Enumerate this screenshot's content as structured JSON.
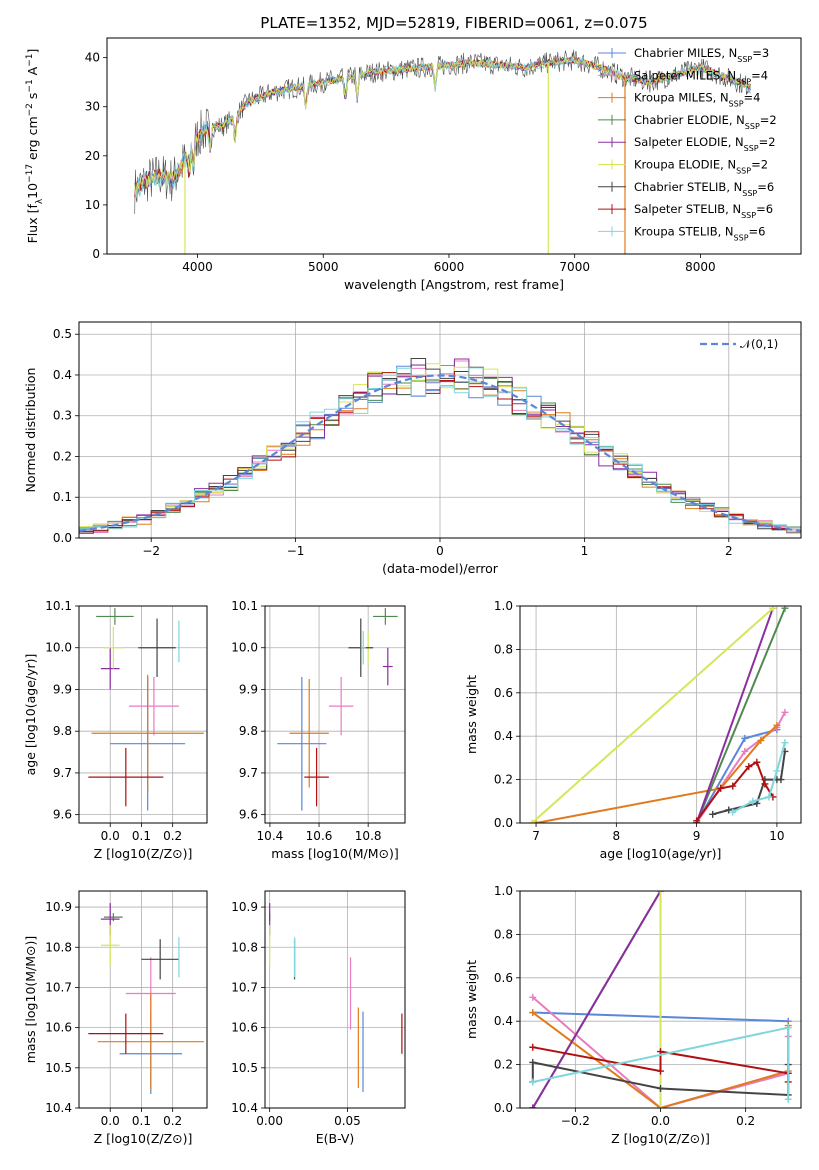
{
  "chart_data": [
    {
      "id": "spectrum",
      "type": "line",
      "title": "PLATE=1352, MJD=52819, FIBERID=0061, z=0.075",
      "xlabel": "wavelength [Angstrom, rest frame]",
      "ylabel": "Flux [f_λ 10^-17 erg cm^-2 s^-1 A^-1]",
      "xlim": [
        3280,
        8800
      ],
      "ylim": [
        0,
        44
      ],
      "xticks": [
        4000,
        5000,
        6000,
        7000,
        8000
      ],
      "yticks": [
        0,
        10,
        20,
        30,
        40
      ],
      "grid": false,
      "legend_position": "top-right",
      "continuum": {
        "x": [
          3500,
          3600,
          3700,
          3800,
          3900,
          4000,
          4100,
          4200,
          4300,
          4400,
          4600,
          4800,
          5000,
          5200,
          5400,
          5600,
          5800,
          6000,
          6200,
          6400,
          6600,
          6800,
          7000,
          7200,
          7400,
          7600,
          7800,
          8000,
          8200,
          8400
        ],
        "y": [
          13,
          15,
          16,
          15,
          19,
          24,
          26,
          26,
          28,
          31,
          33,
          34,
          35,
          36,
          37,
          37.5,
          38,
          38.5,
          39,
          38.5,
          38,
          39,
          39.5,
          38,
          36,
          35,
          36.5,
          38,
          36,
          34
        ]
      },
      "series": [
        {
          "name": "Chabrier MILES, N_SSP=3",
          "color": "#5b86d9"
        },
        {
          "name": "Salpeter MILES, N_SSP=4",
          "color": "#e87cc0"
        },
        {
          "name": "Kroupa MILES, N_SSP=4",
          "color": "#e07a1c"
        },
        {
          "name": "Chabrier ELODIE, N_SSP=2",
          "color": "#4e8a4e"
        },
        {
          "name": "Salpeter ELODIE, N_SSP=2",
          "color": "#8b2ea0"
        },
        {
          "name": "Kroupa ELODIE, N_SSP=2",
          "color": "#d6e65a"
        },
        {
          "name": "Chabrier STELIB, N_SSP=6",
          "color": "#444444"
        },
        {
          "name": "Salpeter STELIB, N_SSP=6",
          "color": "#b01010"
        },
        {
          "name": "Kroupa STELIB, N_SSP=6",
          "color": "#7fd6dc"
        }
      ]
    },
    {
      "id": "residuals",
      "type": "histogram",
      "xlabel": "(data-model)/error",
      "ylabel": "Normed distribution",
      "xlim": [
        -2.5,
        2.5
      ],
      "ylim": [
        0,
        0.53
      ],
      "xticks": [
        -2,
        -1,
        0,
        1,
        2
      ],
      "yticks": [
        0.0,
        0.1,
        0.2,
        0.3,
        0.4,
        0.5
      ],
      "bin_width": 0.1,
      "grid": true,
      "legend": "𝒩(0,1)",
      "legend_position": "top-right",
      "normal_curve": {
        "mean": 0,
        "sigma": 1,
        "color": "#5b86d9"
      }
    },
    {
      "id": "age_vs_Z",
      "type": "scatter",
      "xlabel": "Z [log10(Z/Z⊙)]",
      "ylabel": "age [log10(age/yr)]",
      "xlim": [
        -0.1,
        0.31
      ],
      "ylim": [
        9.58,
        10.1
      ],
      "xticks": [
        0.0,
        0.1,
        0.2
      ],
      "yticks": [
        9.6,
        9.7,
        9.8,
        9.9,
        10.0,
        10.1
      ],
      "grid": true,
      "points": [
        {
          "x": 0.12,
          "y": 9.77,
          "xerr": 0.12,
          "yerr": 0.16,
          "color": "#5b86d9"
        },
        {
          "x": 0.14,
          "y": 9.86,
          "xerr": 0.08,
          "yerr": 0.07,
          "color": "#e87cc0"
        },
        {
          "x": 0.12,
          "y": 9.795,
          "xerr": 0.18,
          "yerr": 0.14,
          "color": "#e07a1c"
        },
        {
          "x": 0.015,
          "y": 10.075,
          "xerr": 0.06,
          "yerr": 0.02,
          "color": "#4e8a4e"
        },
        {
          "x": 0.0,
          "y": 9.95,
          "xerr": 0.03,
          "yerr": 0.05,
          "color": "#8b2ea0"
        },
        {
          "x": 0.01,
          "y": 10.0,
          "xerr": 0.03,
          "yerr": 0.05,
          "color": "#d6e65a"
        },
        {
          "x": 0.15,
          "y": 10.0,
          "xerr": 0.06,
          "yerr": 0.07,
          "color": "#444444"
        },
        {
          "x": 0.05,
          "y": 9.69,
          "xerr": 0.12,
          "yerr": 0.07,
          "color": "#b01010"
        },
        {
          "x": 0.22,
          "y": 10.015,
          "xerr": 0.0,
          "yerr": 0.05,
          "color": "#7fd6dc"
        }
      ]
    },
    {
      "id": "age_vs_mass",
      "type": "scatter",
      "xlabel": "mass [log10(M/M⊙)]",
      "ylabel": "",
      "xlim": [
        10.38,
        10.95
      ],
      "ylim": [
        9.58,
        10.1
      ],
      "xticks": [
        10.4,
        10.6,
        10.8
      ],
      "yticks": [
        9.6,
        9.7,
        9.8,
        9.9,
        10.0,
        10.1
      ],
      "grid": true,
      "points": [
        {
          "x": 10.53,
          "y": 9.77,
          "xerr": 0.1,
          "yerr": 0.16,
          "color": "#5b86d9"
        },
        {
          "x": 10.69,
          "y": 9.86,
          "xerr": 0.05,
          "yerr": 0.07,
          "color": "#e87cc0"
        },
        {
          "x": 10.56,
          "y": 9.795,
          "xerr": 0.08,
          "yerr": 0.13,
          "color": "#e07a1c"
        },
        {
          "x": 10.87,
          "y": 10.075,
          "xerr": 0.05,
          "yerr": 0.02,
          "color": "#4e8a4e"
        },
        {
          "x": 10.88,
          "y": 9.955,
          "xerr": 0.02,
          "yerr": 0.045,
          "color": "#8b2ea0"
        },
        {
          "x": 10.8,
          "y": 10.0,
          "xerr": 0.02,
          "yerr": 0.04,
          "color": "#d6e65a"
        },
        {
          "x": 10.77,
          "y": 10.0,
          "xerr": 0.05,
          "yerr": 0.07,
          "color": "#444444"
        },
        {
          "x": 10.59,
          "y": 9.69,
          "xerr": 0.05,
          "yerr": 0.07,
          "color": "#b01010"
        },
        {
          "x": 10.78,
          "y": 10.0,
          "xerr": 0.01,
          "yerr": 0.04,
          "color": "#7fd6dc"
        }
      ]
    },
    {
      "id": "weight_vs_age",
      "type": "line",
      "xlabel": "age [log10(age/yr)]",
      "ylabel": "mass weight",
      "xlim": [
        6.8,
        10.3
      ],
      "ylim": [
        0,
        1.0
      ],
      "xticks": [
        7,
        8,
        9,
        10
      ],
      "yticks": [
        0.0,
        0.2,
        0.4,
        0.6,
        0.8,
        1.0
      ],
      "grid": true,
      "series": [
        {
          "color": "#5b86d9",
          "x": [
            9.0,
            9.6,
            10.0
          ],
          "y": [
            0.0,
            0.39,
            0.43
          ]
        },
        {
          "color": "#e87cc0",
          "x": [
            9.0,
            9.6,
            10.0,
            10.1
          ],
          "y": [
            0.0,
            0.33,
            0.44,
            0.51
          ]
        },
        {
          "color": "#e07a1c",
          "x": [
            7.0,
            9.3,
            9.8,
            10.0
          ],
          "y": [
            0.0,
            0.16,
            0.38,
            0.45
          ]
        },
        {
          "color": "#4e8a4e",
          "x": [
            9.0,
            10.1
          ],
          "y": [
            0.0,
            0.99
          ]
        },
        {
          "color": "#8b2ea0",
          "x": [
            9.0,
            9.95
          ],
          "y": [
            0.0,
            0.99
          ]
        },
        {
          "color": "#d6e65a",
          "x": [
            6.95,
            9.95
          ],
          "y": [
            0.0,
            0.99
          ]
        },
        {
          "color": "#444444",
          "x": [
            9.2,
            9.4,
            9.75,
            9.85,
            10.0,
            10.05,
            10.1
          ],
          "y": [
            0.04,
            0.06,
            0.09,
            0.2,
            0.2,
            0.2,
            0.33
          ]
        },
        {
          "color": "#b01010",
          "x": [
            9.0,
            9.3,
            9.45,
            9.65,
            9.75,
            9.85,
            9.95
          ],
          "y": [
            0.01,
            0.16,
            0.17,
            0.26,
            0.28,
            0.18,
            0.12
          ]
        },
        {
          "color": "#7fd6dc",
          "x": [
            9.45,
            9.7,
            9.9,
            10.0,
            10.1
          ],
          "y": [
            0.05,
            0.1,
            0.12,
            0.24,
            0.37
          ]
        }
      ]
    },
    {
      "id": "mass_vs_Z",
      "type": "scatter",
      "xlabel": "Z [log10(Z/Z⊙)]",
      "ylabel": "mass [log10(M/M⊙)]",
      "xlim": [
        -0.1,
        0.31
      ],
      "ylim": [
        10.4,
        10.94
      ],
      "xticks": [
        0.0,
        0.1,
        0.2
      ],
      "yticks": [
        10.4,
        10.5,
        10.6,
        10.7,
        10.8,
        10.9
      ],
      "grid": true,
      "points": [
        {
          "x": 0.13,
          "y": 10.535,
          "xerr": 0.1,
          "yerr": 0.1,
          "color": "#5b86d9"
        },
        {
          "x": 0.13,
          "y": 10.685,
          "xerr": 0.08,
          "yerr": 0.09,
          "color": "#e87cc0"
        },
        {
          "x": 0.13,
          "y": 10.565,
          "xerr": 0.17,
          "yerr": 0.12,
          "color": "#e07a1c"
        },
        {
          "x": 0.01,
          "y": 10.875,
          "xerr": 0.03,
          "yerr": 0.01,
          "color": "#4e8a4e"
        },
        {
          "x": 0.0,
          "y": 10.87,
          "xerr": 0.03,
          "yerr": 0.04,
          "color": "#8b2ea0"
        },
        {
          "x": 0.0,
          "y": 10.805,
          "xerr": 0.03,
          "yerr": 0.05,
          "color": "#d6e65a"
        },
        {
          "x": 0.16,
          "y": 10.77,
          "xerr": 0.06,
          "yerr": 0.05,
          "color": "#444444"
        },
        {
          "x": 0.05,
          "y": 10.585,
          "xerr": 0.12,
          "yerr": 0.05,
          "color": "#b01010"
        },
        {
          "x": 0.22,
          "y": 10.775,
          "xerr": 0.0,
          "yerr": 0.05,
          "color": "#7fd6dc"
        }
      ]
    },
    {
      "id": "mass_vs_EBV",
      "type": "scatter",
      "xlabel": "E(B-V)",
      "ylabel": "",
      "xlim": [
        -0.003,
        0.087
      ],
      "ylim": [
        10.4,
        10.94
      ],
      "xticks": [
        0.0,
        0.05
      ],
      "yticks": [
        10.4,
        10.5,
        10.6,
        10.7,
        10.8,
        10.9
      ],
      "grid": true,
      "points": [
        {
          "x": 0.06,
          "y": 10.54,
          "xerr": 0,
          "yerr": 0.1,
          "color": "#5b86d9"
        },
        {
          "x": 0.052,
          "y": 10.685,
          "xerr": 0,
          "yerr": 0.09,
          "color": "#e87cc0"
        },
        {
          "x": 0.057,
          "y": 10.55,
          "xerr": 0,
          "yerr": 0.1,
          "color": "#e07a1c"
        },
        {
          "x": 0.0,
          "y": 10.875,
          "xerr": 0,
          "yerr": 0.01,
          "color": "#4e8a4e"
        },
        {
          "x": 0.0,
          "y": 10.87,
          "xerr": 0,
          "yerr": 0.04,
          "color": "#8b2ea0"
        },
        {
          "x": 0.0,
          "y": 10.805,
          "xerr": 0,
          "yerr": 0.05,
          "color": "#d6e65a"
        },
        {
          "x": 0.016,
          "y": 10.77,
          "xerr": 0,
          "yerr": 0.05,
          "color": "#444444"
        },
        {
          "x": 0.085,
          "y": 10.585,
          "xerr": 0,
          "yerr": 0.05,
          "color": "#b01010"
        },
        {
          "x": 0.016,
          "y": 10.775,
          "xerr": 0,
          "yerr": 0.05,
          "color": "#7fd6dc"
        }
      ]
    },
    {
      "id": "weight_vs_Z",
      "type": "line",
      "xlabel": "Z [log10(Z/Z⊙)]",
      "ylabel": "mass weight",
      "xlim": [
        -0.33,
        0.33
      ],
      "ylim": [
        0,
        1.0
      ],
      "xticks": [
        -0.2,
        0.0,
        0.2
      ],
      "yticks": [
        0.0,
        0.2,
        0.4,
        0.6,
        0.8,
        1.0
      ],
      "grid": true,
      "series": [
        {
          "color": "#5b86d9",
          "x": [
            -0.3,
            0.3
          ],
          "y": [
            0.44,
            0.4
          ]
        },
        {
          "color": "#e87cc0",
          "x": [
            -0.3,
            0.0,
            0.3,
            0.3
          ],
          "y": [
            0.51,
            0.0,
            0.16,
            0.33
          ]
        },
        {
          "color": "#e07a1c",
          "x": [
            -0.3,
            0.0,
            0.3,
            0.3
          ],
          "y": [
            0.44,
            0.0,
            0.17,
            0.38
          ]
        },
        {
          "color": "#4e8a4e",
          "x": [
            -0.3,
            0.0
          ],
          "y": [
            0.0,
            1.0
          ]
        },
        {
          "color": "#8b2ea0",
          "x": [
            -0.3,
            0.0
          ],
          "y": [
            0.0,
            1.0
          ]
        },
        {
          "color": "#d6e65a",
          "x": [
            0.0,
            0.0
          ],
          "y": [
            0.0,
            1.0
          ]
        },
        {
          "color": "#444444",
          "x": [
            -0.3,
            -0.3,
            0.0,
            0.3,
            0.3
          ],
          "y": [
            0.12,
            0.21,
            0.09,
            0.06,
            0.2
          ]
        },
        {
          "color": "#b01010",
          "x": [
            -0.3,
            0.0,
            0.0,
            0.3,
            0.3
          ],
          "y": [
            0.28,
            0.17,
            0.26,
            0.16,
            0.12
          ]
        },
        {
          "color": "#7fd6dc",
          "x": [
            -0.3,
            0.3,
            0.3
          ],
          "y": [
            0.12,
            0.37,
            0.04
          ]
        }
      ]
    }
  ]
}
